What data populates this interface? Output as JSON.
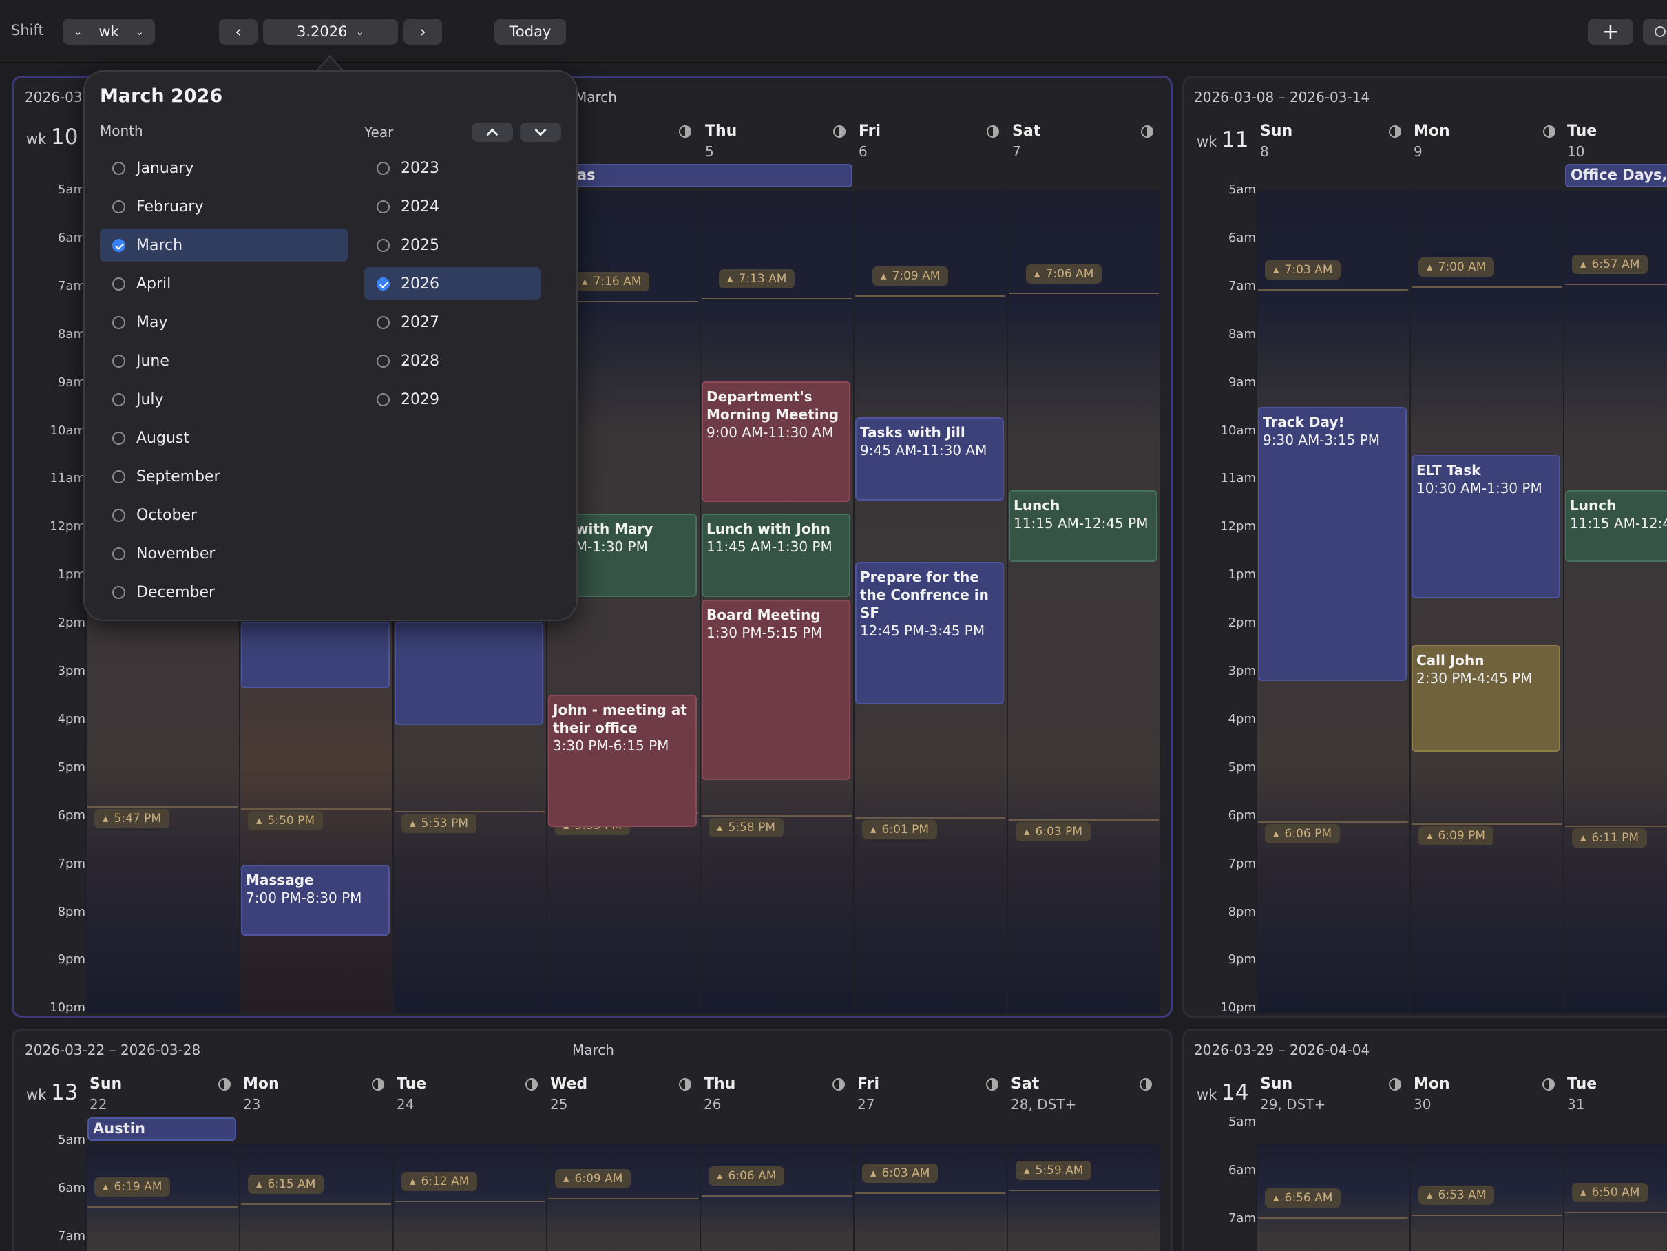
{
  "toolbar": {
    "shift_label": "Shift",
    "view_value": "wk",
    "period_value": "3.2026",
    "today_label": "Today",
    "add_label": "+"
  },
  "picker": {
    "title": "March 2026",
    "month_header": "Month",
    "year_header": "Year",
    "months": [
      "January",
      "February",
      "March",
      "April",
      "May",
      "June",
      "July",
      "August",
      "September",
      "October",
      "November",
      "December"
    ],
    "selected_month": "March",
    "years": [
      "2023",
      "2024",
      "2025",
      "2026",
      "2027",
      "2028",
      "2029"
    ],
    "selected_year": "2026"
  },
  "hours": [
    "5am",
    "6am",
    "7am",
    "8am",
    "9am",
    "10am",
    "11am",
    "12pm",
    "1pm",
    "2pm",
    "3pm",
    "4pm",
    "5pm",
    "6pm",
    "7pm",
    "8pm",
    "9pm",
    "10pm"
  ],
  "weeks": {
    "w10": {
      "range": "2026-03",
      "month": "March",
      "wk_prefix": "wk",
      "wk_num": "10",
      "days": [
        {
          "name": "Thu",
          "num": "5"
        },
        {
          "name": "Fri",
          "num": "6"
        },
        {
          "name": "Sat",
          "num": "7"
        }
      ],
      "sunrise": [
        "7:16 AM",
        "7:13 AM",
        "7:09 AM",
        "7:06 AM"
      ],
      "sunset": [
        "5:47 PM",
        "5:50 PM",
        "5:53 PM",
        "5:55 PM",
        "5:58 PM",
        "6:01 PM",
        "6:03 PM"
      ],
      "allday": "as",
      "events": [
        {
          "title": "Department's Morning Meeting",
          "time": "9:00 AM-11:30 AM"
        },
        {
          "title": "ch with Mary",
          "time": "5 AM-1:30 PM"
        },
        {
          "title": "Lunch with John",
          "time": "11:45 AM-1:30 PM"
        },
        {
          "title": "Board Meeting",
          "time": "1:30 PM-5:15 PM"
        },
        {
          "title": "John - meeting at their office",
          "time": "3:30 PM-6:15 PM"
        },
        {
          "title": "Tasks with Jill",
          "time": "9:45 AM-11:30 AM"
        },
        {
          "title": "Prepare for the the Confrence in SF",
          "time": "12:45 PM-3:45 PM"
        },
        {
          "title": "Lunch",
          "time": "11:15 AM-12:45 PM"
        },
        {
          "title": "Massage",
          "time": "7:00 PM-8:30 PM"
        }
      ]
    },
    "w11": {
      "range": "2026-03-08 – 2026-03-14",
      "wk_prefix": "wk",
      "wk_num": "11",
      "days": [
        {
          "name": "Sun",
          "num": "8"
        },
        {
          "name": "Mon",
          "num": "9"
        },
        {
          "name": "Tue",
          "num": "10"
        }
      ],
      "sunrise": [
        "7:03 AM",
        "7:00 AM",
        "6:57 AM"
      ],
      "sunset": [
        "6:06 PM",
        "6:09 PM",
        "6:11 PM"
      ],
      "allday": "Office Days, F",
      "events": [
        {
          "title": "Track Day!",
          "time": "9:30 AM-3:15 PM"
        },
        {
          "title": "ELT Task",
          "time": "10:30 AM-1:30 PM"
        },
        {
          "title": "Call John",
          "time": "2:30 PM-4:45 PM"
        },
        {
          "title": "Lunch",
          "time": "11:15 AM-12:4"
        }
      ]
    },
    "w13": {
      "range": "2026-03-22 – 2026-03-28",
      "month": "March",
      "wk_prefix": "wk",
      "wk_num": "13",
      "days": [
        {
          "name": "Sun",
          "num": "22"
        },
        {
          "name": "Mon",
          "num": "23"
        },
        {
          "name": "Tue",
          "num": "24"
        },
        {
          "name": "Wed",
          "num": "25"
        },
        {
          "name": "Thu",
          "num": "26"
        },
        {
          "name": "Fri",
          "num": "27"
        },
        {
          "name": "Sat",
          "num": "28, DST+"
        }
      ],
      "hours": [
        "5am",
        "6am",
        "7am"
      ],
      "sunrise": [
        "6:19 AM",
        "6:15 AM",
        "6:12 AM",
        "6:09 AM",
        "6:06 AM",
        "6:03 AM",
        "5:59 AM"
      ],
      "allday": "Austin"
    },
    "w14": {
      "range": "2026-03-29 – 2026-04-04",
      "wk_prefix": "wk",
      "wk_num": "14",
      "days": [
        {
          "name": "Sun",
          "num": "29, DST+"
        },
        {
          "name": "Mon",
          "num": "30"
        },
        {
          "name": "Tue",
          "num": "31"
        }
      ],
      "hours": [
        "5am",
        "6am",
        "7am"
      ],
      "sunrise": [
        "6:56 AM",
        "6:53 AM",
        "6:50 AM"
      ]
    }
  }
}
